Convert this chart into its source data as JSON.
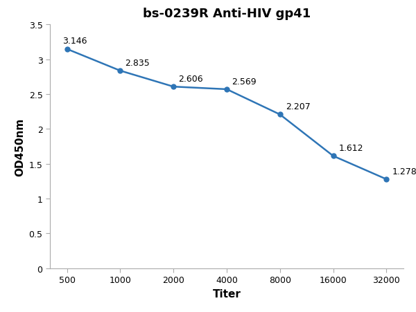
{
  "title": "bs-0239R Anti-HIV gp41",
  "xlabel": "Titer",
  "ylabel": "OD450nm",
  "x_values": [
    500,
    1000,
    2000,
    4000,
    8000,
    16000,
    32000
  ],
  "y_values": [
    3.146,
    2.835,
    2.606,
    2.569,
    2.207,
    1.612,
    1.278
  ],
  "labels": [
    "3.146",
    "2.835",
    "2.606",
    "2.569",
    "2.207",
    "1.612",
    "1.278"
  ],
  "line_color": "#2E75B6",
  "marker_color": "#2E75B6",
  "marker_style": "o",
  "marker_size": 5,
  "line_width": 1.8,
  "ylim": [
    0,
    3.5
  ],
  "yticks": [
    0,
    0.5,
    1.0,
    1.5,
    2.0,
    2.5,
    3.0,
    3.5
  ],
  "xticks": [
    500,
    1000,
    2000,
    4000,
    8000,
    16000,
    32000
  ],
  "title_fontsize": 13,
  "axis_label_fontsize": 11,
  "tick_fontsize": 9,
  "annotation_fontsize": 9,
  "background_color": "#ffffff",
  "figure_width": 6.0,
  "figure_height": 4.52,
  "dpi": 100
}
